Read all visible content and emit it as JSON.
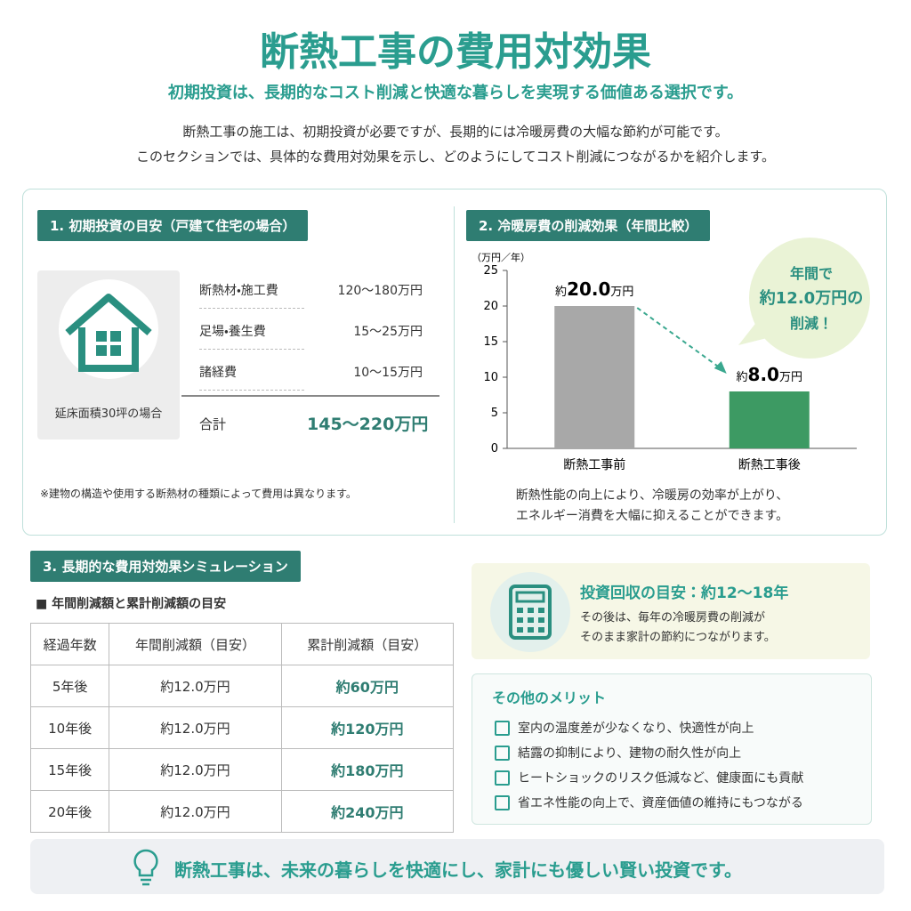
{
  "header": {
    "title": "断熱工事の費用対効果",
    "subtitle": "初期投資は、長期的なコスト削減と快適な暮らしを実現する価値ある選択です。",
    "intro": [
      "断熱工事の施工は、初期投資が必要ですが、長期的には冷暖房費の大幅な節約が可能です。",
      "このセクションでは、具体的な費用対効果を示し、どのようにしてコスト削減につながるかを紹介します。"
    ]
  },
  "section1": {
    "heading": "1. 初期投資の目安（戸建て住宅の場合）",
    "image_caption": "延床面積30坪の場合",
    "items": [
      {
        "label": "断熱材・施工費",
        "value": "120〜180万円"
      },
      {
        "label": "足場・養生費",
        "value": "15〜25万円"
      },
      {
        "label": "諸経費",
        "value": "10〜15万円"
      }
    ],
    "total": {
      "label": "合計",
      "value": "145〜220万円"
    },
    "note": "※建物の構造や使用する断熱材の種類によって費用は異なります。"
  },
  "section2": {
    "heading": "2. 冷暖房費の削減効果（年間比較）",
    "callout": [
      "年間で",
      "約12.0万円の",
      "削減！"
    ],
    "caption": [
      "断熱性能の向上により、冷暖房の効率が上がり、",
      "エネルギー消費を大幅に抑えることができます。"
    ]
  },
  "chart_data": {
    "type": "bar",
    "y_unit_label": "（万円／年）",
    "categories": [
      "断熱工事前",
      "断熱工事後"
    ],
    "values": [
      20,
      8
    ],
    "value_labels": [
      "20.0",
      "8.0"
    ],
    "value_prefix": "約",
    "value_suffix": "万円",
    "colors": [
      "#a8a8a8",
      "#3d9a63"
    ],
    "ylim": [
      0,
      25
    ],
    "yticks": [
      0,
      5,
      10,
      15,
      20,
      25
    ]
  },
  "section3": {
    "heading": "3. 長期的な費用対効果シミュレーション",
    "table_title": "■ 年間削減額と累計削減額の目安",
    "table": {
      "header": [
        "経過年数",
        "年間削減額（目安）",
        "累計削減額（目安）"
      ],
      "rows": [
        [
          "5年後",
          "約12.0万円",
          "約60万円"
        ],
        [
          "10年後",
          "約12.0万円",
          "約120万円"
        ],
        [
          "15年後",
          "約12.0万円",
          "約180万円"
        ],
        [
          "20年後",
          "約12.0万円",
          "約240万円"
        ]
      ]
    }
  },
  "payback": {
    "title": "投資回収の目安：約12〜18年",
    "text": [
      "その後は、毎年の冷暖房費の削減が",
      "そのまま家計の節約につながります。"
    ]
  },
  "merits": {
    "title": "その他のメリット",
    "items": [
      "室内の温度差が少なくなり、快適性が向上",
      "結露の抑制により、建物の耐久性が向上",
      "ヒートショックのリスク低減など、健康面にも貢献",
      "省エネ性能の向上で、資産価値の維持にもつながる"
    ]
  },
  "footer": "断熱工事は、未来の暮らしを快適にし、家計にも優しい賢い投資です。"
}
